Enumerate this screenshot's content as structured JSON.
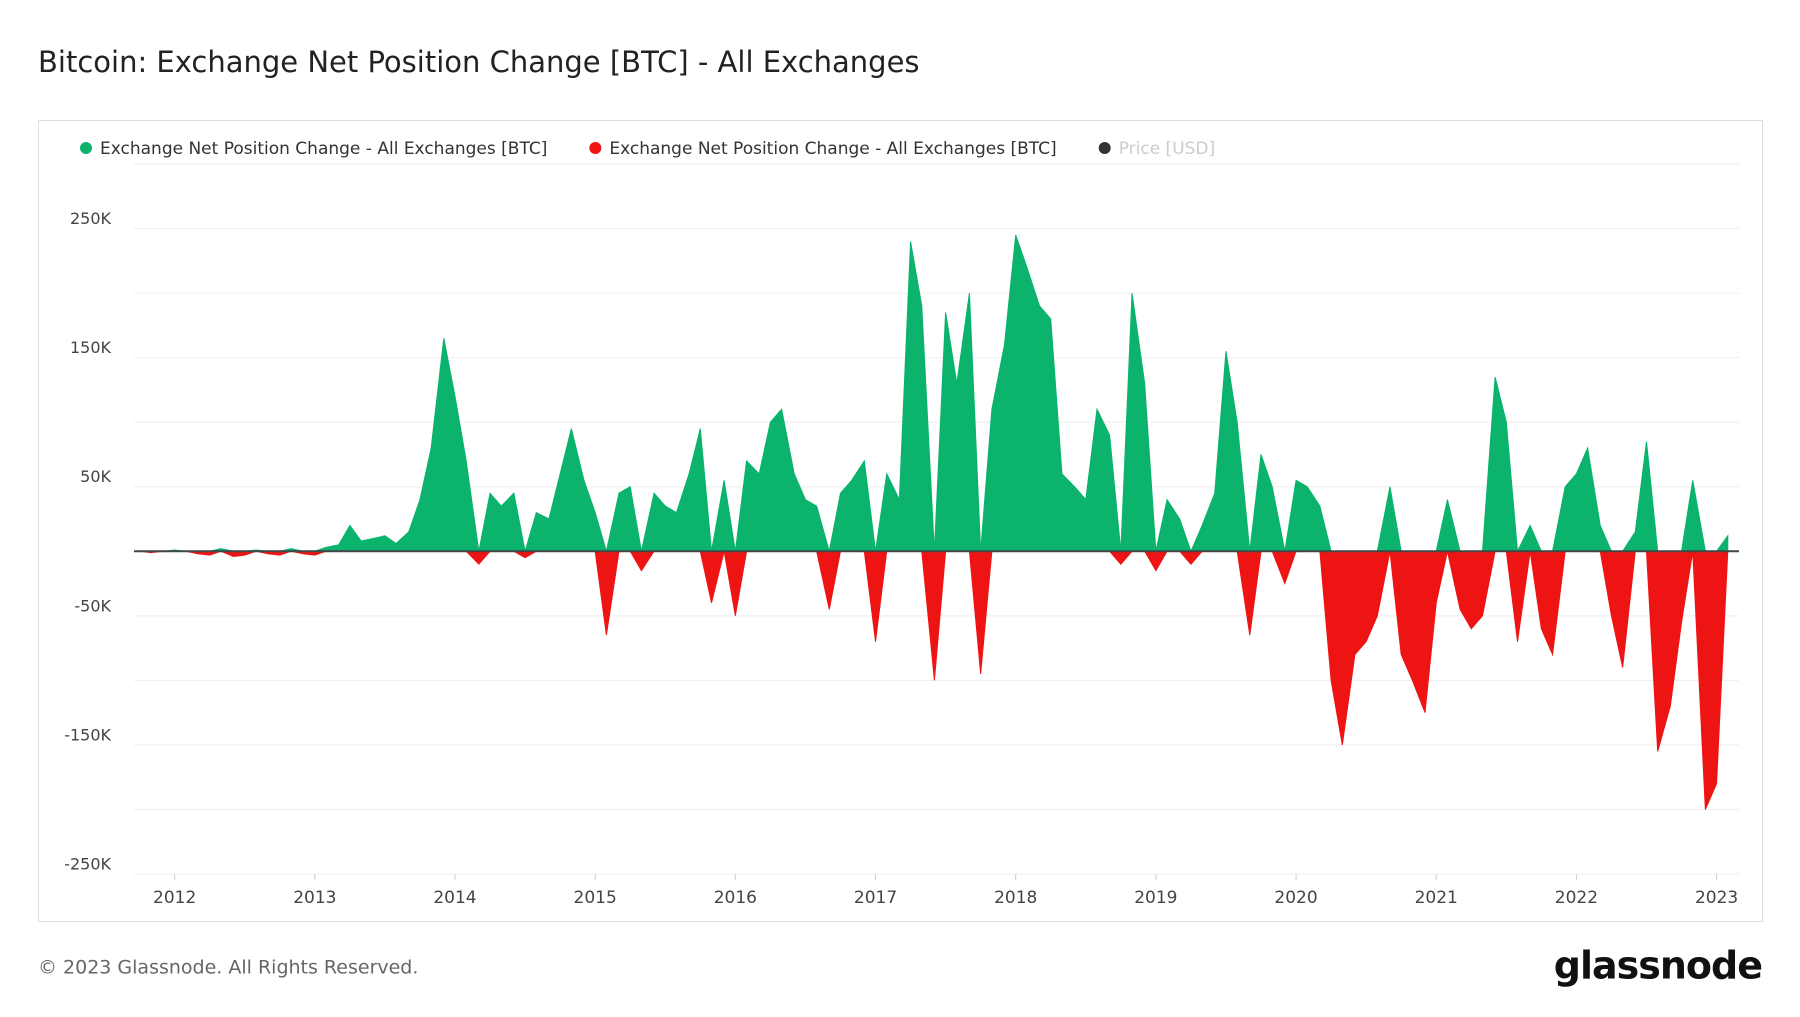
{
  "chart_data": {
    "type": "area",
    "title": "Bitcoin: Exchange Net Position Change [BTC] - All Exchanges",
    "footer": "© 2023 Glassnode. All Rights Reserved.",
    "brand": "glassnode",
    "x": [
      2011.75,
      2011.83,
      2011.92,
      2012,
      2012.08,
      2012.17,
      2012.25,
      2012.33,
      2012.42,
      2012.5,
      2012.58,
      2012.67,
      2012.75,
      2012.83,
      2012.92,
      2013,
      2013.08,
      2013.17,
      2013.25,
      2013.33,
      2013.42,
      2013.5,
      2013.58,
      2013.67,
      2013.75,
      2013.83,
      2013.92,
      2014,
      2014.08,
      2014.17,
      2014.25,
      2014.33,
      2014.42,
      2014.5,
      2014.58,
      2014.67,
      2014.75,
      2014.83,
      2014.92,
      2015,
      2015.08,
      2015.17,
      2015.25,
      2015.33,
      2015.42,
      2015.5,
      2015.58,
      2015.67,
      2015.75,
      2015.83,
      2015.92,
      2016,
      2016.08,
      2016.17,
      2016.25,
      2016.33,
      2016.42,
      2016.5,
      2016.58,
      2016.67,
      2016.75,
      2016.83,
      2016.92,
      2017,
      2017.08,
      2017.17,
      2017.25,
      2017.33,
      2017.42,
      2017.5,
      2017.58,
      2017.67,
      2017.75,
      2017.83,
      2017.92,
      2018,
      2018.08,
      2018.17,
      2018.25,
      2018.33,
      2018.42,
      2018.5,
      2018.58,
      2018.67,
      2018.75,
      2018.83,
      2018.92,
      2019,
      2019.08,
      2019.17,
      2019.25,
      2019.33,
      2019.42,
      2019.5,
      2019.58,
      2019.67,
      2019.75,
      2019.83,
      2019.92,
      2020,
      2020.08,
      2020.17,
      2020.25,
      2020.33,
      2020.42,
      2020.5,
      2020.58,
      2020.67,
      2020.75,
      2020.83,
      2020.92,
      2021,
      2021.08,
      2021.17,
      2021.25,
      2021.33,
      2021.42,
      2021.5,
      2021.58,
      2021.67,
      2021.75,
      2021.83,
      2021.92,
      2022,
      2022.08,
      2022.17,
      2022.25,
      2022.33,
      2022.42,
      2022.5,
      2022.58,
      2022.67,
      2022.75,
      2022.83,
      2022.92,
      2023,
      2023.08
    ],
    "series": [
      {
        "name": "Exchange Net Position Change - All Exchanges [BTC]",
        "color": "#0bb36d",
        "values": [
          0,
          0,
          0,
          1000,
          0,
          0,
          0,
          2000,
          0,
          0,
          1000,
          0,
          0,
          2000,
          0,
          0,
          3000,
          5000,
          20000,
          8000,
          10000,
          12000,
          6000,
          15000,
          40000,
          80000,
          165000,
          120000,
          70000,
          0,
          45000,
          35000,
          45000,
          0,
          30000,
          25000,
          60000,
          95000,
          55000,
          30000,
          0,
          45000,
          50000,
          0,
          45000,
          35000,
          30000,
          60000,
          95000,
          0,
          55000,
          0,
          70000,
          60000,
          100000,
          110000,
          60000,
          40000,
          35000,
          0,
          45000,
          55000,
          70000,
          0,
          60000,
          40000,
          240000,
          190000,
          0,
          185000,
          130000,
          200000,
          0,
          110000,
          160000,
          245000,
          220000,
          190000,
          180000,
          60000,
          50000,
          40000,
          110000,
          90000,
          0,
          200000,
          130000,
          0,
          40000,
          25000,
          0,
          20000,
          45000,
          155000,
          100000,
          0,
          75000,
          50000,
          0,
          55000,
          50000,
          35000,
          0,
          0,
          0,
          0,
          0,
          50000,
          0,
          0,
          0,
          0,
          40000,
          0,
          0,
          0,
          135000,
          100000,
          0,
          20000,
          0,
          0,
          50000,
          60000,
          80000,
          20000,
          0,
          0,
          15000,
          85000,
          0,
          0,
          0,
          55000,
          0,
          0,
          12000
        ]
      },
      {
        "name": "Exchange Net Position Change - All Exchanges [BTC]",
        "color": "#ee1414",
        "values": [
          0,
          -1000,
          0,
          0,
          0,
          -2000,
          -3000,
          0,
          -4000,
          -3000,
          0,
          -2000,
          -3000,
          0,
          -2000,
          -3000,
          0,
          0,
          0,
          0,
          0,
          0,
          0,
          0,
          0,
          0,
          0,
          0,
          0,
          -10000,
          0,
          0,
          0,
          -5000,
          0,
          0,
          0,
          0,
          0,
          0,
          -65000,
          0,
          0,
          -15000,
          0,
          0,
          0,
          0,
          0,
          -40000,
          0,
          -50000,
          0,
          0,
          0,
          0,
          0,
          0,
          0,
          -45000,
          0,
          0,
          0,
          -70000,
          0,
          0,
          0,
          0,
          -100000,
          0,
          0,
          0,
          -95000,
          0,
          0,
          0,
          0,
          0,
          0,
          0,
          0,
          0,
          0,
          0,
          -10000,
          0,
          0,
          -15000,
          0,
          0,
          -10000,
          0,
          0,
          0,
          0,
          -65000,
          0,
          0,
          -25000,
          0,
          0,
          0,
          -100000,
          -150000,
          -80000,
          -70000,
          -50000,
          0,
          -80000,
          -100000,
          -125000,
          -40000,
          0,
          -45000,
          -60000,
          -50000,
          0,
          0,
          -70000,
          0,
          -60000,
          -80000,
          0,
          0,
          0,
          0,
          -50000,
          -90000,
          0,
          0,
          -155000,
          -120000,
          -55000,
          0,
          -200000,
          -180000,
          0
        ]
      },
      {
        "name": "Price [USD]",
        "color": "#333333",
        "visible": false
      }
    ],
    "xlim": [
      2011.71,
      2023.16
    ],
    "xticks": [
      2012,
      2013,
      2014,
      2015,
      2016,
      2017,
      2018,
      2019,
      2020,
      2021,
      2022,
      2023
    ],
    "ylim": [
      -250000,
      300000
    ],
    "yticks": [
      {
        "value": 250000,
        "label": "250K"
      },
      {
        "value": 150000,
        "label": "150K"
      },
      {
        "value": 50000,
        "label": "50K"
      },
      {
        "value": -50000,
        "label": "-50K"
      },
      {
        "value": -150000,
        "label": "-150K"
      },
      {
        "value": -250000,
        "label": "-250K"
      }
    ],
    "ygrid": [
      300000,
      250000,
      200000,
      150000,
      100000,
      50000,
      0,
      -50000,
      -100000,
      -150000,
      -200000,
      -250000
    ],
    "grid": true
  }
}
